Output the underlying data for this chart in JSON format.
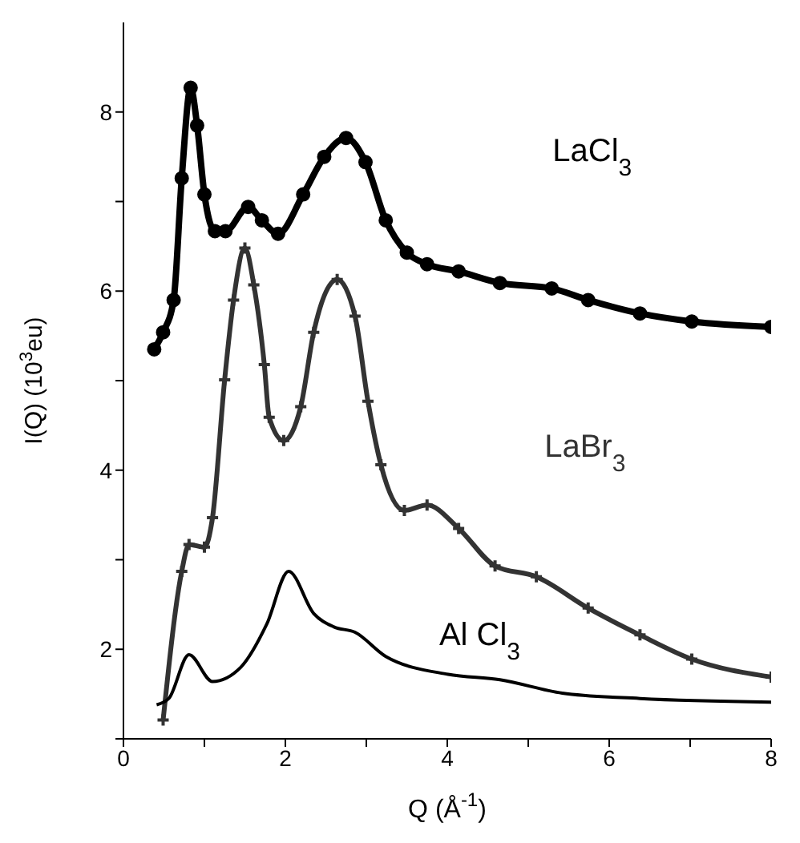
{
  "chart_data": {
    "type": "line",
    "xlabel": "Q (Å$^{-1}$)",
    "ylabel": "I(Q) (10$^{3}$eu)",
    "xlim": [
      0,
      8
    ],
    "ylim": [
      1,
      9
    ],
    "xticks": [
      0,
      {
        "value": 1,
        "label": null
      },
      2,
      {
        "value": 3,
        "label": null
      },
      4,
      {
        "value": 5,
        "label": null
      },
      6,
      {
        "value": 7,
        "label": null
      },
      8
    ],
    "yticks": [
      {
        "value": 1,
        "label": null
      },
      2,
      {
        "value": 3,
        "label": null
      },
      4,
      {
        "value": 5,
        "label": null
      },
      6,
      {
        "value": 7,
        "label": null
      },
      8
    ],
    "grid": false,
    "legend": false,
    "line_style": "solid",
    "series": [
      {
        "name": "LaCl$_{3}$",
        "color": "#000000",
        "marker": "circle",
        "x": [
          0.38,
          0.49,
          0.62,
          0.72,
          0.83,
          0.91,
          1.0,
          1.13,
          1.26,
          1.54,
          1.71,
          1.91,
          2.22,
          2.48,
          2.75,
          2.99,
          3.24,
          3.5,
          3.75,
          4.14,
          4.65,
          5.29,
          5.74,
          6.38,
          7.02,
          8.0
        ],
        "values": [
          5.35,
          5.54,
          5.9,
          7.26,
          8.27,
          7.85,
          7.08,
          6.67,
          6.67,
          6.94,
          6.79,
          6.64,
          7.08,
          7.5,
          7.71,
          7.44,
          6.79,
          6.43,
          6.3,
          6.22,
          6.09,
          6.03,
          5.9,
          5.75,
          5.66,
          5.6
        ]
      },
      {
        "name": "LaBr$_{3}$",
        "color": "#333333",
        "marker": "cross",
        "x": [
          0.49,
          0.72,
          0.81,
          1.0,
          1.1,
          1.25,
          1.36,
          1.5,
          1.61,
          1.74,
          1.8,
          1.98,
          2.19,
          2.35,
          2.64,
          2.86,
          3.02,
          3.18,
          3.47,
          3.75,
          4.14,
          4.59,
          5.1,
          5.74,
          6.38,
          7.02,
          8.0
        ],
        "values": [
          1.21,
          2.87,
          3.17,
          3.14,
          3.47,
          5.01,
          5.9,
          6.48,
          6.07,
          5.18,
          4.59,
          4.33,
          4.71,
          5.54,
          6.13,
          5.72,
          4.77,
          4.06,
          3.55,
          3.61,
          3.35,
          2.93,
          2.81,
          2.46,
          2.16,
          1.89,
          1.69
        ]
      },
      {
        "name": "Al Cl$_{3}$",
        "color": "#000000",
        "marker": "none",
        "x": [
          0.41,
          0.56,
          0.81,
          1.1,
          1.45,
          1.77,
          2.04,
          2.35,
          2.6,
          2.86,
          3.24,
          4.01,
          4.65,
          5.42,
          6.38,
          8.0
        ],
        "values": [
          1.38,
          1.45,
          1.94,
          1.64,
          1.8,
          2.28,
          2.87,
          2.4,
          2.25,
          2.19,
          1.92,
          1.72,
          1.66,
          1.51,
          1.45,
          1.41
        ]
      }
    ]
  }
}
